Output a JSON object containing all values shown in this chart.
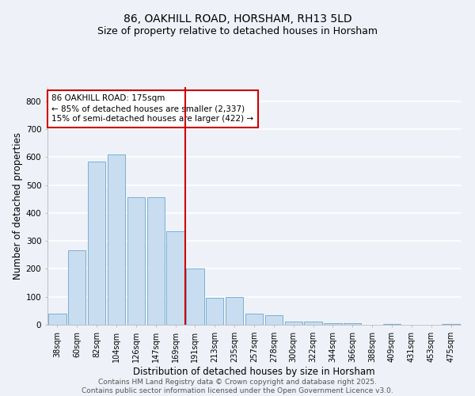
{
  "title_line1": "86, OAKHILL ROAD, HORSHAM, RH13 5LD",
  "title_line2": "Size of property relative to detached houses in Horsham",
  "xlabel": "Distribution of detached houses by size in Horsham",
  "ylabel": "Number of detached properties",
  "categories": [
    "38sqm",
    "60sqm",
    "82sqm",
    "104sqm",
    "126sqm",
    "147sqm",
    "169sqm",
    "191sqm",
    "213sqm",
    "235sqm",
    "257sqm",
    "278sqm",
    "300sqm",
    "322sqm",
    "344sqm",
    "366sqm",
    "388sqm",
    "409sqm",
    "431sqm",
    "453sqm",
    "475sqm"
  ],
  "values": [
    40,
    265,
    585,
    610,
    455,
    455,
    335,
    200,
    95,
    100,
    40,
    35,
    12,
    12,
    7,
    5,
    0,
    3,
    0,
    0,
    3
  ],
  "bar_color": "#c9ddf0",
  "bar_edge_color": "#7bafd4",
  "vline_x": 6.5,
  "vline_color": "#cc0000",
  "annotation_line1": "86 OAKHILL ROAD: 175sqm",
  "annotation_line2": "← 85% of detached houses are smaller (2,337)",
  "annotation_line3": "15% of semi-detached houses are larger (422) →",
  "annotation_box_color": "white",
  "annotation_box_edge": "#cc0000",
  "ylim": [
    0,
    850
  ],
  "yticks": [
    0,
    100,
    200,
    300,
    400,
    500,
    600,
    700,
    800
  ],
  "bg_color": "#eef2f8",
  "grid_color": "white",
  "footer_text": "Contains HM Land Registry data © Crown copyright and database right 2025.\nContains public sector information licensed under the Open Government Licence v3.0.",
  "title_fontsize": 10,
  "subtitle_fontsize": 9,
  "axis_label_fontsize": 8.5,
  "tick_fontsize": 7,
  "annotation_fontsize": 7.5,
  "footer_fontsize": 6.5
}
